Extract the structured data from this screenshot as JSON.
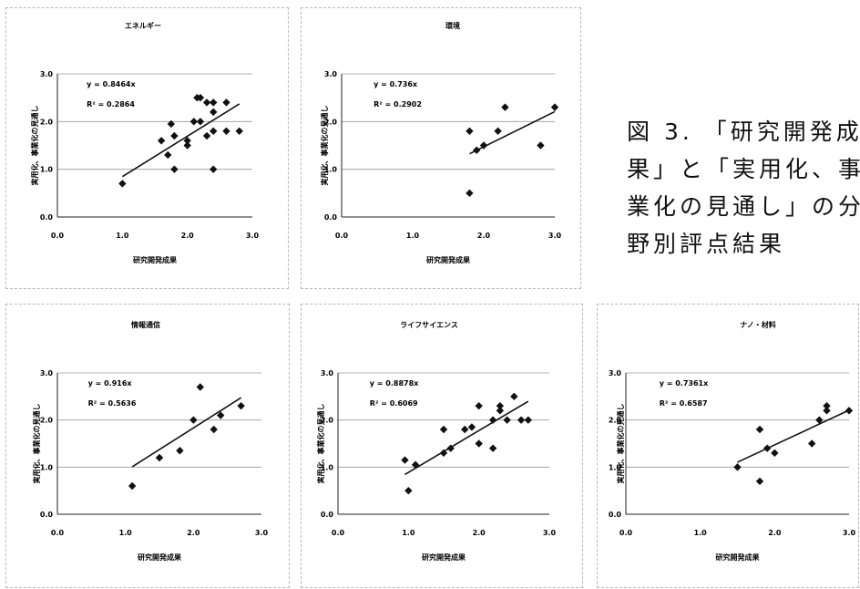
{
  "figure_caption": [
    "図 3. 「研究開発成",
    "果」と「実用化、事",
    "業化の見通し」の分",
    "野別評点結果"
  ],
  "chart_data": [
    {
      "type": "scatter",
      "title": "エネルギー",
      "xlabel": "研究開発成果",
      "ylabel": "実用化、事業化の見通し",
      "xlim": [
        0,
        3
      ],
      "ylim": [
        0,
        3
      ],
      "xticks": [
        "0.0",
        "1.0",
        "2.0",
        "3.0"
      ],
      "yticks": [
        "0.0",
        "1.0",
        "2.0",
        "3.0"
      ],
      "trendline": {
        "slope": 0.8464,
        "equation": "y = 0.8464x",
        "r2": "R² = 0.2864"
      },
      "grid": "horizontal",
      "points": [
        [
          1.0,
          0.7
        ],
        [
          1.6,
          1.6
        ],
        [
          1.7,
          1.3
        ],
        [
          1.75,
          1.95
        ],
        [
          1.8,
          1.0
        ],
        [
          1.8,
          1.7
        ],
        [
          2.0,
          1.6
        ],
        [
          2.0,
          1.5
        ],
        [
          2.1,
          2.0
        ],
        [
          2.15,
          2.5
        ],
        [
          2.2,
          2.5
        ],
        [
          2.2,
          2.0
        ],
        [
          2.3,
          2.4
        ],
        [
          2.3,
          1.7
        ],
        [
          2.4,
          2.4
        ],
        [
          2.4,
          2.2
        ],
        [
          2.4,
          1.8
        ],
        [
          2.4,
          1.0
        ],
        [
          2.6,
          2.4
        ],
        [
          2.6,
          1.8
        ],
        [
          2.8,
          1.8
        ]
      ]
    },
    {
      "type": "scatter",
      "title": "環境",
      "xlabel": "研究開発成果",
      "ylabel": "実用化、事業化の見通し",
      "xlim": [
        0,
        3
      ],
      "ylim": [
        0,
        3
      ],
      "xticks": [
        "0.0",
        "1.0",
        "2.0",
        "3.0"
      ],
      "yticks": [
        "0.0",
        "1.0",
        "2.0",
        "3.0"
      ],
      "trendline": {
        "slope": 0.736,
        "equation": "y = 0.736x",
        "r2": "R² = 0.2902"
      },
      "grid": "horizontal",
      "points": [
        [
          1.8,
          1.8
        ],
        [
          1.8,
          0.5
        ],
        [
          1.9,
          1.4
        ],
        [
          2.0,
          1.5
        ],
        [
          2.2,
          1.8
        ],
        [
          2.3,
          2.3
        ],
        [
          2.8,
          1.5
        ],
        [
          3.0,
          2.3
        ]
      ]
    },
    {
      "type": "scatter",
      "title": "情報通信",
      "xlabel": "研究開発成果",
      "ylabel": "実用化、事業化の見通し",
      "xlim": [
        0,
        3
      ],
      "ylim": [
        0,
        3
      ],
      "xticks": [
        "0.0",
        "1.0",
        "2.0",
        "3.0"
      ],
      "yticks": [
        "0.0",
        "1.0",
        "2.0",
        "3.0"
      ],
      "trendline": {
        "slope": 0.916,
        "equation": "y = 0.916x",
        "r2": "R² = 0.5636"
      },
      "grid": "horizontal",
      "points": [
        [
          1.1,
          0.6
        ],
        [
          1.5,
          1.2
        ],
        [
          1.8,
          1.35
        ],
        [
          2.0,
          2.0
        ],
        [
          2.1,
          2.7
        ],
        [
          2.3,
          1.8
        ],
        [
          2.4,
          2.1
        ],
        [
          2.7,
          2.3
        ]
      ]
    },
    {
      "type": "scatter",
      "title": "ライフサイエンス",
      "xlabel": "研究開発成果",
      "ylabel": "実用化、事業化の見通し",
      "xlim": [
        0,
        3
      ],
      "ylim": [
        0,
        3
      ],
      "xticks": [
        "0.0",
        "1.0",
        "2.0",
        "3.0"
      ],
      "yticks": [
        "0.0",
        "1.0",
        "2.0",
        "3.0"
      ],
      "trendline": {
        "slope": 0.8878,
        "equation": "y = 0.8878x",
        "r2": "R² = 0.6069"
      },
      "grid": "horizontal",
      "points": [
        [
          0.95,
          1.15
        ],
        [
          1.0,
          0.5
        ],
        [
          1.1,
          1.05
        ],
        [
          1.5,
          1.3
        ],
        [
          1.5,
          1.8
        ],
        [
          1.6,
          1.4
        ],
        [
          1.8,
          1.8
        ],
        [
          1.9,
          1.85
        ],
        [
          2.0,
          2.3
        ],
        [
          2.0,
          1.5
        ],
        [
          2.2,
          2.0
        ],
        [
          2.2,
          1.4
        ],
        [
          2.3,
          2.3
        ],
        [
          2.3,
          2.2
        ],
        [
          2.4,
          2.0
        ],
        [
          2.5,
          2.5
        ],
        [
          2.6,
          2.0
        ],
        [
          2.7,
          2.0
        ]
      ]
    },
    {
      "type": "scatter",
      "title": "ナノ・材料",
      "xlabel": "研究開発成果",
      "ylabel": "実用化、事業化の見通し",
      "xlim": [
        0,
        3
      ],
      "ylim": [
        0,
        3
      ],
      "xticks": [
        "0.0",
        "1.0",
        "2.0",
        "3.0"
      ],
      "yticks": [
        "0.0",
        "1.0",
        "2.0",
        "3.0"
      ],
      "trendline": {
        "slope": 0.7361,
        "equation": "y = 0.7361x",
        "r2": "R² = 0.6587"
      },
      "grid": "horizontal",
      "points": [
        [
          1.5,
          1.0
        ],
        [
          1.8,
          0.7
        ],
        [
          1.8,
          1.8
        ],
        [
          1.9,
          1.4
        ],
        [
          2.0,
          1.3
        ],
        [
          2.5,
          1.5
        ],
        [
          2.6,
          2.0
        ],
        [
          2.7,
          2.2
        ],
        [
          2.7,
          2.3
        ],
        [
          3.0,
          2.2
        ]
      ]
    }
  ]
}
